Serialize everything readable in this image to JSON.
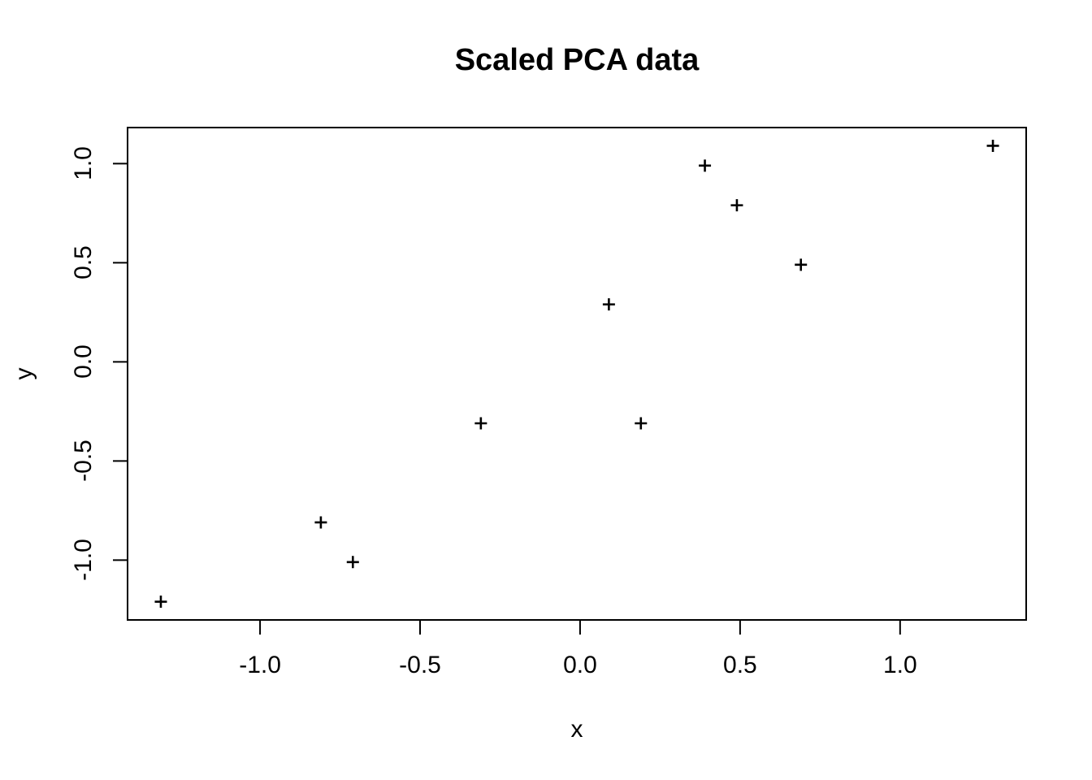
{
  "figure": {
    "background": "#ffffff",
    "foreground": "#000000"
  },
  "chart_data": {
    "type": "scatter",
    "title": "Scaled PCA data",
    "xlabel": "x",
    "ylabel": "y",
    "marker": "plus",
    "marker_color": "#000000",
    "grid": false,
    "legend": null,
    "xlim": [
      -1.414,
      1.394
    ],
    "ylim": [
      -1.302,
      1.182
    ],
    "x_tick_values": [
      -1.0,
      -0.5,
      0.0,
      0.5,
      1.0
    ],
    "x_tick_labels": [
      "-1.0",
      "-0.5",
      "0.0",
      "0.5",
      "1.0"
    ],
    "y_tick_values": [
      -1.0,
      -0.5,
      0.0,
      0.5,
      1.0
    ],
    "y_tick_labels": [
      "-1.0",
      "-0.5",
      "0.0",
      "0.5",
      "1.0"
    ],
    "points": [
      {
        "x": 0.69,
        "y": 0.49
      },
      {
        "x": -1.31,
        "y": -1.21
      },
      {
        "x": 0.39,
        "y": 0.99
      },
      {
        "x": 0.09,
        "y": 0.29
      },
      {
        "x": 1.29,
        "y": 1.09
      },
      {
        "x": 0.49,
        "y": 0.79
      },
      {
        "x": 0.19,
        "y": -0.31
      },
      {
        "x": -0.81,
        "y": -0.81
      },
      {
        "x": -0.31,
        "y": -0.31
      },
      {
        "x": -0.71,
        "y": -1.01
      }
    ]
  }
}
